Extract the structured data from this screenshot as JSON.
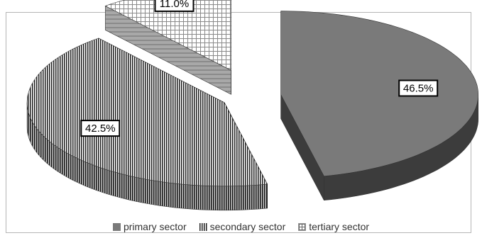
{
  "chart_data": {
    "type": "pie",
    "style": "3d-exploded",
    "categories": [
      "primary sector",
      "secondary sector",
      "tertiary sector"
    ],
    "values": [
      46.5,
      42.5,
      11.0
    ],
    "labels": [
      "46.5%",
      "42.5%",
      "11.0%"
    ],
    "legend_placement": "bottom",
    "title": "",
    "colors": {
      "primary": "#7a7a7a",
      "primary_side": "#3c3c3c",
      "secondary_pattern": "vertical-stripes",
      "tertiary_pattern": "grid"
    }
  }
}
